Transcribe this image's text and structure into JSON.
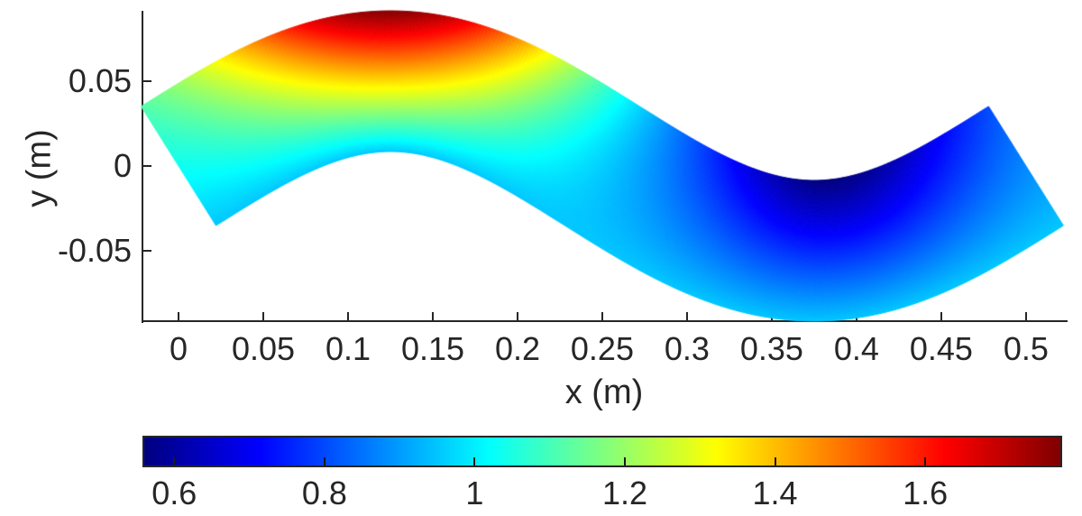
{
  "figure": {
    "background": "#ffffff",
    "text_color": "#262626",
    "axis_color": "#262626"
  },
  "chart_data": {
    "type": "heatmap",
    "title": "",
    "xlabel": "x (m)",
    "ylabel": "y (m)",
    "grid": false,
    "legend": "none",
    "colormap": "jet",
    "xlim": [
      -0.0213,
      0.524
    ],
    "ylim": [
      -0.0915,
      0.0915
    ],
    "x_ticks": {
      "values": [
        0,
        0.05,
        0.1,
        0.15,
        0.2,
        0.25,
        0.3,
        0.35,
        0.4,
        0.45,
        0.5
      ],
      "labels": [
        "0",
        "0.05",
        "0.1",
        "0.15",
        "0.2",
        "0.25",
        "0.3",
        "0.35",
        "0.4",
        "0.45",
        "0.5"
      ]
    },
    "y_ticks": {
      "values": [
        0.05,
        0,
        -0.05
      ],
      "labels": [
        "0.05",
        "0",
        "-0.05"
      ]
    },
    "colorbar": {
      "orientation": "horizontal",
      "position": "below x-axis",
      "value_range": [
        0.56,
        1.78
      ],
      "ticks": {
        "values": [
          0.6,
          0.8,
          1,
          1.2,
          1.4,
          1.6
        ],
        "labels": [
          "0.6",
          "0.8",
          "1",
          "1.2",
          "1.4",
          "1.6"
        ]
      }
    },
    "surface": {
      "description": "S-shaped sinusoidal band (wavy channel wall-to-wall surface) colored by a scalar field with jet colormap; hot spot (dark red, ~1.78) on the outer edge of the first crest near x=0.125, cold spot (dark blue, ~0.56) on the inner edge of the trough near x=0.39, cyan (~0.95-1.0) along the opposite edge and both ends",
      "centerline": {
        "amplitude": 0.05,
        "wavelength": 0.5,
        "s_start": 0,
        "s_end": 0.5
      },
      "half_width_perpendicular": 0.0415,
      "field": {
        "base_inner": 0.95,
        "base_across_gain": 0.08,
        "hot_spot": {
          "s_center": 0.125,
          "sigma": 0.085,
          "amplitude": 0.75,
          "peak_value": 1.78
        },
        "cold_spot": {
          "s_center": 0.39,
          "sigma": 0.13,
          "amplitude": -0.47,
          "min_value": 0.56
        }
      }
    }
  }
}
